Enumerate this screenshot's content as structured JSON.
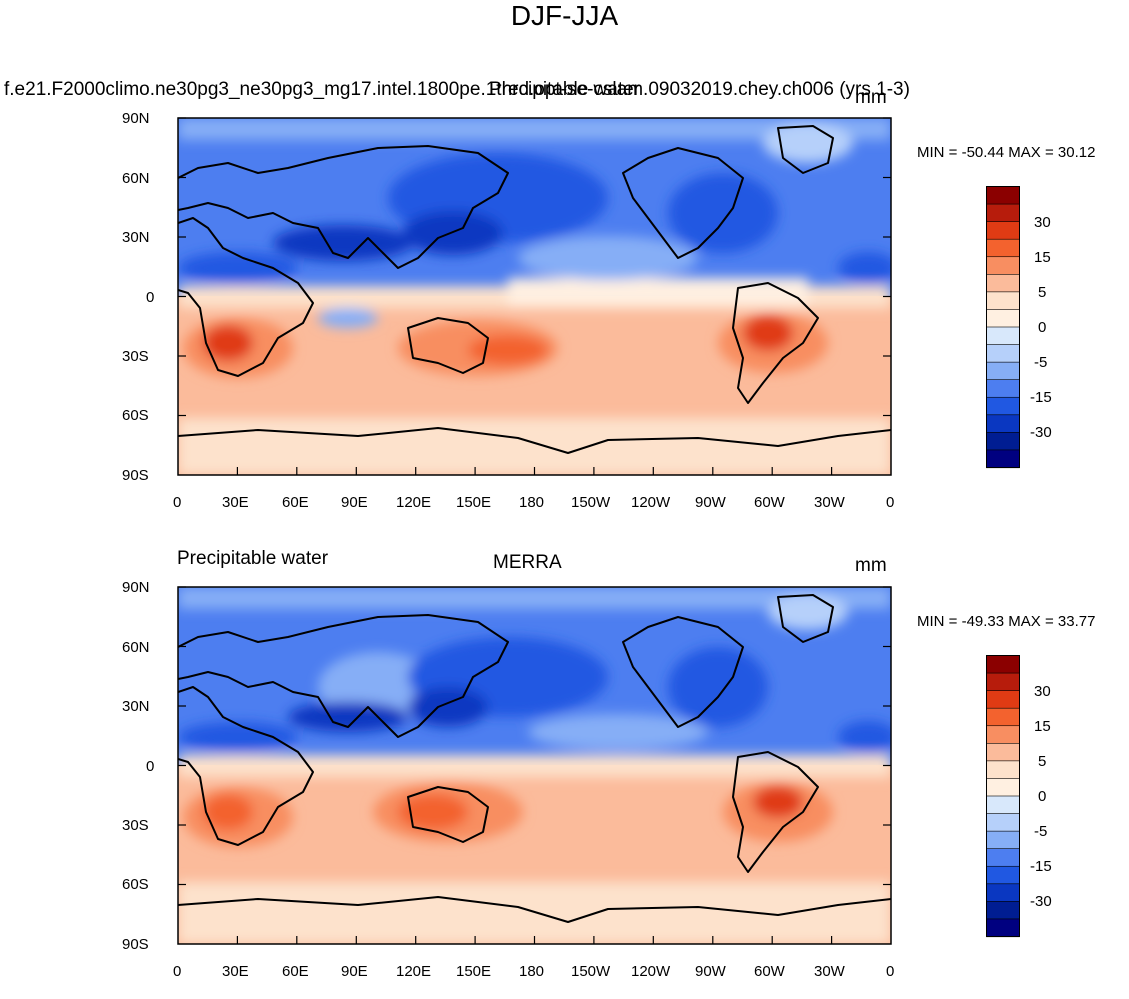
{
  "figure": {
    "title": "DJF-JJA"
  },
  "panels": [
    {
      "left_title": "f.e21.F2000climo.ne30pg3_ne30pg3_mg17.intel.1800pe.1thrd.opt-se-cslam.09032019.chey.ch006 (yrs 1-3)",
      "center_title": "Precipitable water",
      "right_title": "mm",
      "min_max": "MIN = -50.44 MAX =  30.12"
    },
    {
      "left_title": "Precipitable water",
      "center_title": "MERRA",
      "right_title": "mm",
      "min_max": "MIN = -49.33 MAX =  33.77"
    }
  ],
  "axes": {
    "lat_labels": [
      "90N",
      "60N",
      "30N",
      "0",
      "30S",
      "60S",
      "90S"
    ],
    "lon_labels": [
      "0",
      "30E",
      "60E",
      "90E",
      "120E",
      "150E",
      "180",
      "150W",
      "120W",
      "90W",
      "60W",
      "30W",
      "0"
    ]
  },
  "colorbar": {
    "labels": [
      "30",
      "15",
      "5",
      "0",
      "-5",
      "-15",
      "-30"
    ],
    "colors": [
      "#8b0000",
      "#b71c0c",
      "#e03b14",
      "#f3622e",
      "#f88e61",
      "#fbbb9b",
      "#fde2cc",
      "#fff0e1",
      "#d8e8fb",
      "#b6d0fa",
      "#86aef6",
      "#4d7ef0",
      "#2058e2",
      "#0a37c1",
      "#001d92",
      "#000080"
    ]
  },
  "map_colors": {
    "deep_blue": "#0a37c1",
    "blue": "#2058e2",
    "mid_blue": "#4d7ef0",
    "light_blue": "#86aef6",
    "pale_blue": "#b6d0fa",
    "cream": "#fde2cc",
    "peach": "#fbbb9b",
    "salmon": "#f88e61",
    "orange": "#f3622e",
    "red": "#e03b14"
  }
}
